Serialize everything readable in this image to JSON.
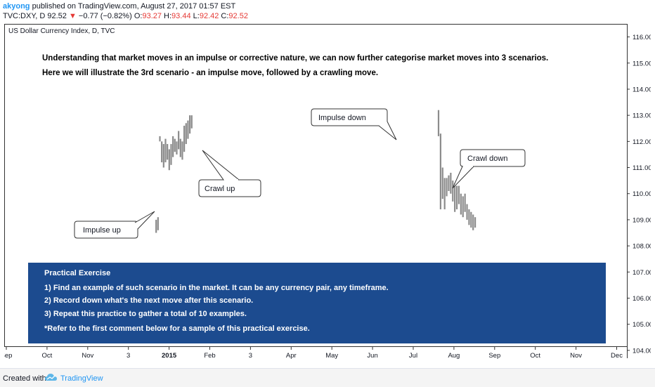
{
  "header": {
    "user": "akyong",
    "published": "published on TradingView.com, August 27, 2017 01:57 EST",
    "symbol": "TVC:DXY, D",
    "last": "92.52",
    "change_arrow": "▼",
    "change": "−0.77 (−0.82%)",
    "o_label": "O:",
    "o_value": "93.27",
    "h_label": "H:",
    "h_value": "93.44",
    "l_label": "L:",
    "l_value": "92.42",
    "c_label": "C:",
    "c_value": "92.52"
  },
  "chart_data": {
    "type": "bar",
    "title": "US Dollar Currency Index, D, TVC",
    "ylim": [
      103.7,
      116.5
    ],
    "y_ticks": [
      "116.00",
      "115.00",
      "114.00",
      "113.00",
      "112.00",
      "111.00",
      "110.00",
      "109.00",
      "108.00",
      "107.00",
      "106.00",
      "105.00",
      "104.00"
    ],
    "y_tick_values": [
      116,
      115,
      114,
      113,
      112,
      111,
      110,
      109,
      108,
      107,
      106,
      105,
      104
    ],
    "x_ticks": [
      "Sep",
      "Oct",
      "Nov",
      "3",
      "2015",
      "Feb",
      "3",
      "Apr",
      "May",
      "Jun",
      "Jul",
      "Aug",
      "Sep",
      "Oct",
      "Nov",
      "Dec"
    ],
    "x_tick_index": [
      0,
      1,
      2,
      3,
      4,
      5,
      6,
      7,
      8,
      9,
      10,
      11,
      12,
      13,
      14,
      15
    ],
    "x_tick_bold": "2015",
    "series": [
      {
        "bars": [
          [
            108.5,
            109.0
          ],
          [
            108.6,
            109.1
          ],
          [
            112.0,
            112.2
          ],
          [
            111.2,
            112.0
          ],
          [
            111.0,
            111.9
          ],
          [
            111.2,
            112.1
          ],
          [
            111.3,
            111.9
          ],
          [
            110.9,
            111.7
          ],
          [
            111.1,
            111.9
          ],
          [
            111.4,
            112.2
          ],
          [
            111.6,
            112.1
          ],
          [
            111.5,
            112.0
          ],
          [
            111.7,
            112.4
          ],
          [
            111.4,
            112.1
          ],
          [
            111.3,
            112.0
          ],
          [
            111.6,
            112.6
          ],
          [
            111.9,
            112.7
          ],
          [
            112.1,
            112.8
          ],
          [
            112.3,
            113.0
          ],
          [
            112.5,
            113.0
          ]
        ],
        "x_start_index": 3.68,
        "x_step": 0.046
      },
      {
        "bars": [
          [
            112.2,
            113.2
          ],
          [
            109.4,
            112.3
          ],
          [
            109.8,
            111.0
          ],
          [
            109.4,
            110.6
          ],
          [
            109.9,
            110.6
          ],
          [
            110.1,
            110.7
          ],
          [
            110.0,
            110.8
          ],
          [
            109.7,
            110.5
          ],
          [
            109.3,
            110.4
          ],
          [
            109.4,
            110.3
          ],
          [
            109.6,
            110.3
          ],
          [
            109.2,
            110.0
          ],
          [
            109.1,
            109.9
          ],
          [
            109.3,
            110.0
          ],
          [
            109.0,
            109.6
          ],
          [
            108.8,
            109.4
          ],
          [
            108.7,
            109.3
          ],
          [
            108.6,
            109.2
          ],
          [
            108.7,
            109.1
          ]
        ],
        "x_start_index": 10.62,
        "x_step": 0.05
      }
    ],
    "annotations": {
      "headline_1": "Understanding that market moves in an impulse or corrective nature, we can now further categorise market moves into 3 scenarios.",
      "headline_2": "Here we will illustrate the 3rd scenario - an impulse move, followed by a crawling move.",
      "callouts": [
        "Impulse up",
        "Crawl up",
        "Impulse down",
        "Crawl down"
      ],
      "exercise": {
        "title": "Practical Exercise",
        "lines": [
          "1) Find an example of such scenario in the market. It can be any currency pair, any timeframe.",
          "2) Record down what's the next move after this scenario.",
          "3) Repeat this practice to gather a total of 10 examples.",
          "*Refer to the first comment below for a sample of this practical exercise."
        ]
      }
    },
    "grid": false,
    "colors": {
      "bars": "#8c8c8c",
      "exercise_bg": "#1c4b8f",
      "exercise_text": "#ffffff"
    }
  },
  "footer": {
    "created_with": "Created with",
    "brand": "TradingView"
  }
}
